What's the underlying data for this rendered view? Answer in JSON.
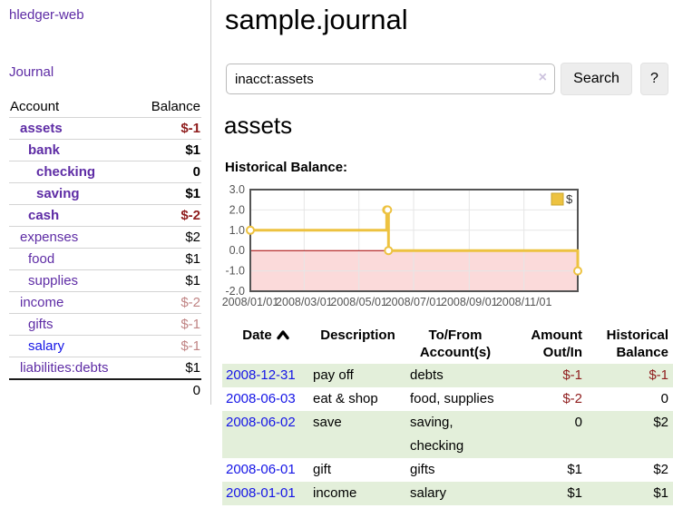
{
  "app": {
    "brand": "hledger-web",
    "nav": {
      "journal": "Journal"
    }
  },
  "colors": {
    "accent_purple": "#5e2ca5",
    "link_blue": "#1515e6",
    "negative": "#8f1d1d",
    "negative_soft": "#c08484",
    "row_highlight": "#e3efda",
    "chart_line": "#edc240",
    "chart_marker_fill": "#ffffff",
    "chart_negative_region": "#fbdada",
    "chart_zero_line": "#a40000",
    "chart_border": "#545454",
    "chart_grid": "#e6e6e6"
  },
  "sidebar": {
    "header": {
      "account": "Account",
      "balance": "Balance"
    },
    "accounts": [
      {
        "name": "assets",
        "indent": 1,
        "bold": true,
        "balance": "$-1",
        "balance_style": "negative"
      },
      {
        "name": "bank",
        "indent": 2,
        "bold": true,
        "balance": "$1",
        "balance_style": "normal"
      },
      {
        "name": "checking",
        "indent": 3,
        "bold": true,
        "balance": "0",
        "balance_style": "normal"
      },
      {
        "name": "saving",
        "indent": 3,
        "bold": true,
        "balance": "$1",
        "balance_style": "normal"
      },
      {
        "name": "cash",
        "indent": 2,
        "bold": true,
        "balance": "$-2",
        "balance_style": "negative"
      },
      {
        "name": "expenses",
        "indent": 1,
        "bold": false,
        "balance": "$2",
        "balance_style": "normal"
      },
      {
        "name": "food",
        "indent": 2,
        "bold": false,
        "balance": "$1",
        "balance_style": "normal"
      },
      {
        "name": "supplies",
        "indent": 2,
        "bold": false,
        "balance": "$1",
        "balance_style": "normal"
      },
      {
        "name": "income",
        "indent": 1,
        "bold": false,
        "balance": "$-2",
        "balance_style": "negative-soft"
      },
      {
        "name": "gifts",
        "indent": 2,
        "bold": false,
        "balance": "$-1",
        "balance_style": "negative-soft"
      },
      {
        "name": "salary",
        "indent": 2,
        "bold": false,
        "balance": "$-1",
        "balance_style": "negative-soft",
        "link_style": "blue"
      },
      {
        "name": "liabilities:debts",
        "indent": 1,
        "bold": false,
        "balance": "$1",
        "balance_style": "normal"
      }
    ],
    "total": "0"
  },
  "main": {
    "title": "sample.journal"
  },
  "search": {
    "value": "inacct:assets",
    "clear": "×",
    "button_label": "Search",
    "help_label": "?"
  },
  "account_view": {
    "heading": "assets",
    "chart_title": "Historical Balance:"
  },
  "chart_data": {
    "type": "line",
    "step": true,
    "title": "Historical Balance",
    "series": [
      {
        "name": "$",
        "points": [
          [
            "2008-01-01",
            1
          ],
          [
            "2008-06-01",
            2
          ],
          [
            "2008-06-02",
            2
          ],
          [
            "2008-06-03",
            0
          ],
          [
            "2008-12-31",
            -1
          ]
        ]
      }
    ],
    "xlim": [
      "2008-01-01",
      "2008-12-31"
    ],
    "ylim": [
      -2,
      3
    ],
    "y_ticks": [
      {
        "v": 3,
        "label": "3.0"
      },
      {
        "v": 2,
        "label": "2.0"
      },
      {
        "v": 1,
        "label": "1.0"
      },
      {
        "v": 0,
        "label": "0.0"
      },
      {
        "v": -1,
        "label": "-1.0"
      },
      {
        "v": -2,
        "label": "-2.0"
      }
    ],
    "x_ticks": [
      {
        "date": "2008-01-01",
        "label": "2008/01/01"
      },
      {
        "date": "2008-03-01",
        "label": "2008/03/01"
      },
      {
        "date": "2008-05-01",
        "label": "2008/05/01"
      },
      {
        "date": "2008-07-01",
        "label": "2008/07/01"
      },
      {
        "date": "2008-09-01",
        "label": "2008/09/01"
      },
      {
        "date": "2008-11-01",
        "label": "2008/11/01"
      }
    ],
    "legend": {
      "label": "$",
      "position": "top-right"
    },
    "grid": true,
    "negative_region": true
  },
  "register": {
    "columns": [
      {
        "key": "date",
        "l1": "Date",
        "l2": "",
        "align": "left",
        "sort": "asc"
      },
      {
        "key": "description",
        "l1": "Description",
        "l2": "",
        "align": "left"
      },
      {
        "key": "accounts",
        "l1": "To/From",
        "l2": "Account(s)",
        "align": "left"
      },
      {
        "key": "amount",
        "l1": "Amount",
        "l2": "Out/In",
        "align": "right"
      },
      {
        "key": "balance",
        "l1": "Historical",
        "l2": "Balance",
        "align": "right"
      }
    ],
    "rows": [
      {
        "date": "2008-12-31",
        "description": "pay off",
        "accounts": "debts",
        "amount": "$-1",
        "amount_style": "negative",
        "balance": "$-1",
        "balance_style": "negative",
        "highlight": true
      },
      {
        "date": "2008-06-03",
        "description": "eat & shop",
        "accounts": "food, supplies",
        "amount": "$-2",
        "amount_style": "negative",
        "balance": "0",
        "balance_style": "normal",
        "highlight": false
      },
      {
        "date": "2008-06-02",
        "description": "save",
        "accounts": "saving,\nchecking",
        "amount": "0",
        "amount_style": "normal",
        "balance": "$2",
        "balance_style": "normal",
        "highlight": true
      },
      {
        "date": "2008-06-01",
        "description": "gift",
        "accounts": "gifts",
        "amount": "$1",
        "amount_style": "normal",
        "balance": "$2",
        "balance_style": "normal",
        "highlight": false
      },
      {
        "date": "2008-01-01",
        "description": "income",
        "accounts": "salary",
        "amount": "$1",
        "amount_style": "normal",
        "balance": "$1",
        "balance_style": "normal",
        "highlight": true
      }
    ]
  }
}
